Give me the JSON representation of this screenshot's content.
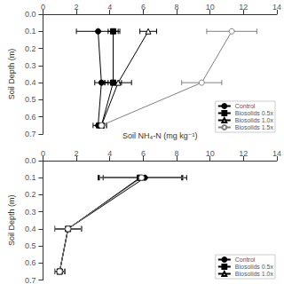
{
  "chart_data": [
    {
      "type": "line",
      "ylabel": "Soil Depth (m)",
      "xlim": [
        0,
        14
      ],
      "ylim": [
        0.7,
        0.0
      ],
      "xticks": [
        0,
        2,
        4,
        6,
        8,
        10,
        12,
        14
      ],
      "yticks": [
        {
          "value": 0,
          "label": "0.0"
        },
        0.1,
        0.2,
        0.3,
        0.4,
        0.5,
        0.6,
        0.7
      ],
      "grid": false,
      "legend": "lower right",
      "series": [
        {
          "name": "Control",
          "color": "#000000",
          "marker": "circle",
          "x": [
            3.3,
            3.5,
            3.3
          ],
          "xerr": [
            1.3,
            0.4,
            0.3
          ],
          "values": [
            0.1,
            0.4,
            0.65
          ]
        },
        {
          "name": "Biosolids 0.5x",
          "color": "#000000",
          "marker": "square",
          "x": [
            4.2,
            4.2,
            3.5
          ],
          "xerr": [
            0.3,
            0.5,
            0.3
          ],
          "values": [
            0.1,
            0.4,
            0.65
          ]
        },
        {
          "name": "Biosolids 1.0x",
          "color": "#000000",
          "marker": "triangle-open",
          "x": [
            6.3,
            4.5,
            3.5
          ],
          "xerr": [
            0.5,
            0.8,
            0.3
          ],
          "values": [
            0.1,
            0.4,
            0.65
          ]
        },
        {
          "name": "Biosolids 1.5x",
          "color": "#808080",
          "marker": "circle-open",
          "x": [
            11.3,
            9.5,
            3.5
          ],
          "xerr": [
            1.5,
            1.2,
            0.3
          ],
          "values": [
            0.1,
            0.4,
            0.65
          ]
        }
      ]
    },
    {
      "type": "line",
      "xlabel": "Soil NH₄-N (mg kg⁻¹)",
      "ylabel": "Soil Depth (m)",
      "xlim": [
        0,
        14
      ],
      "ylim": [
        0.7,
        0.0
      ],
      "xticks": [
        0,
        2,
        4,
        6,
        8,
        10,
        12,
        14
      ],
      "yticks": [
        {
          "value": 0,
          "label": "0.0"
        },
        0.1,
        0.2,
        0.3,
        0.4,
        0.5,
        0.6,
        0.7
      ],
      "grid": false,
      "legend": "lower right",
      "series": [
        {
          "name": "Control",
          "color": "#000000",
          "marker": "circle",
          "x": [
            6.1,
            1.5,
            1.0
          ],
          "xerr": [
            2.5,
            0.8,
            0.3
          ],
          "values": [
            0.1,
            0.4,
            0.65
          ]
        },
        {
          "name": "Biosolids 0.5x",
          "color": "#000000",
          "marker": "square",
          "x": [
            5.8,
            1.5,
            1.0
          ],
          "xerr": [
            2.5,
            0.8,
            0.3
          ],
          "values": [
            0.1,
            0.4,
            0.65
          ]
        },
        {
          "name": "Biosolids 1.0x",
          "color": "#000000",
          "marker": "triangle-open",
          "x": [
            5.85,
            1.5,
            1.0
          ],
          "xerr": [
            2.5,
            0.8,
            0.3
          ],
          "values": [
            0.1,
            0.4,
            0.65
          ]
        },
        {
          "color": "#808080",
          "marker": "circle-open",
          "x": [
            5.9,
            1.5,
            1.0
          ],
          "xerr": [
            2.5,
            0.8,
            0.3
          ],
          "values": [
            0.1,
            0.4,
            0.65
          ]
        }
      ]
    }
  ]
}
